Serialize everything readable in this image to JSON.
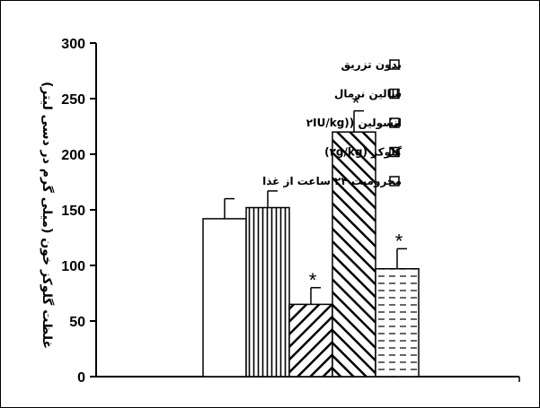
{
  "chart_data": {
    "type": "bar",
    "ylabel": "غلظت گلوکز خون (میلی گرم در دسی لیتر)",
    "ylim": [
      0,
      300
    ],
    "yticks": [
      "0",
      "50",
      "100",
      "150",
      "200",
      "250",
      "300"
    ],
    "series": [
      {
        "name": "بدون تزریق",
        "value": 142,
        "error": 18,
        "significant": false,
        "pattern": "empty"
      },
      {
        "name": "سالین نرمال",
        "value": 152,
        "error": 15,
        "significant": false,
        "pattern": "vertical"
      },
      {
        "name": "انسولین ((۲IU/kg",
        "value": 65,
        "error": 15,
        "significant": true,
        "pattern": "diag-down"
      },
      {
        "name": "گلوکز (۲g/kg)",
        "value": 220,
        "error": 19,
        "significant": true,
        "pattern": "diag-up"
      },
      {
        "name": "محرومیت ۲۴ ساعت از غذا",
        "value": 97,
        "error": 18,
        "significant": true,
        "pattern": "dashed"
      }
    ],
    "significance_marker": "*",
    "legend_position": "top-right",
    "grid": false
  }
}
